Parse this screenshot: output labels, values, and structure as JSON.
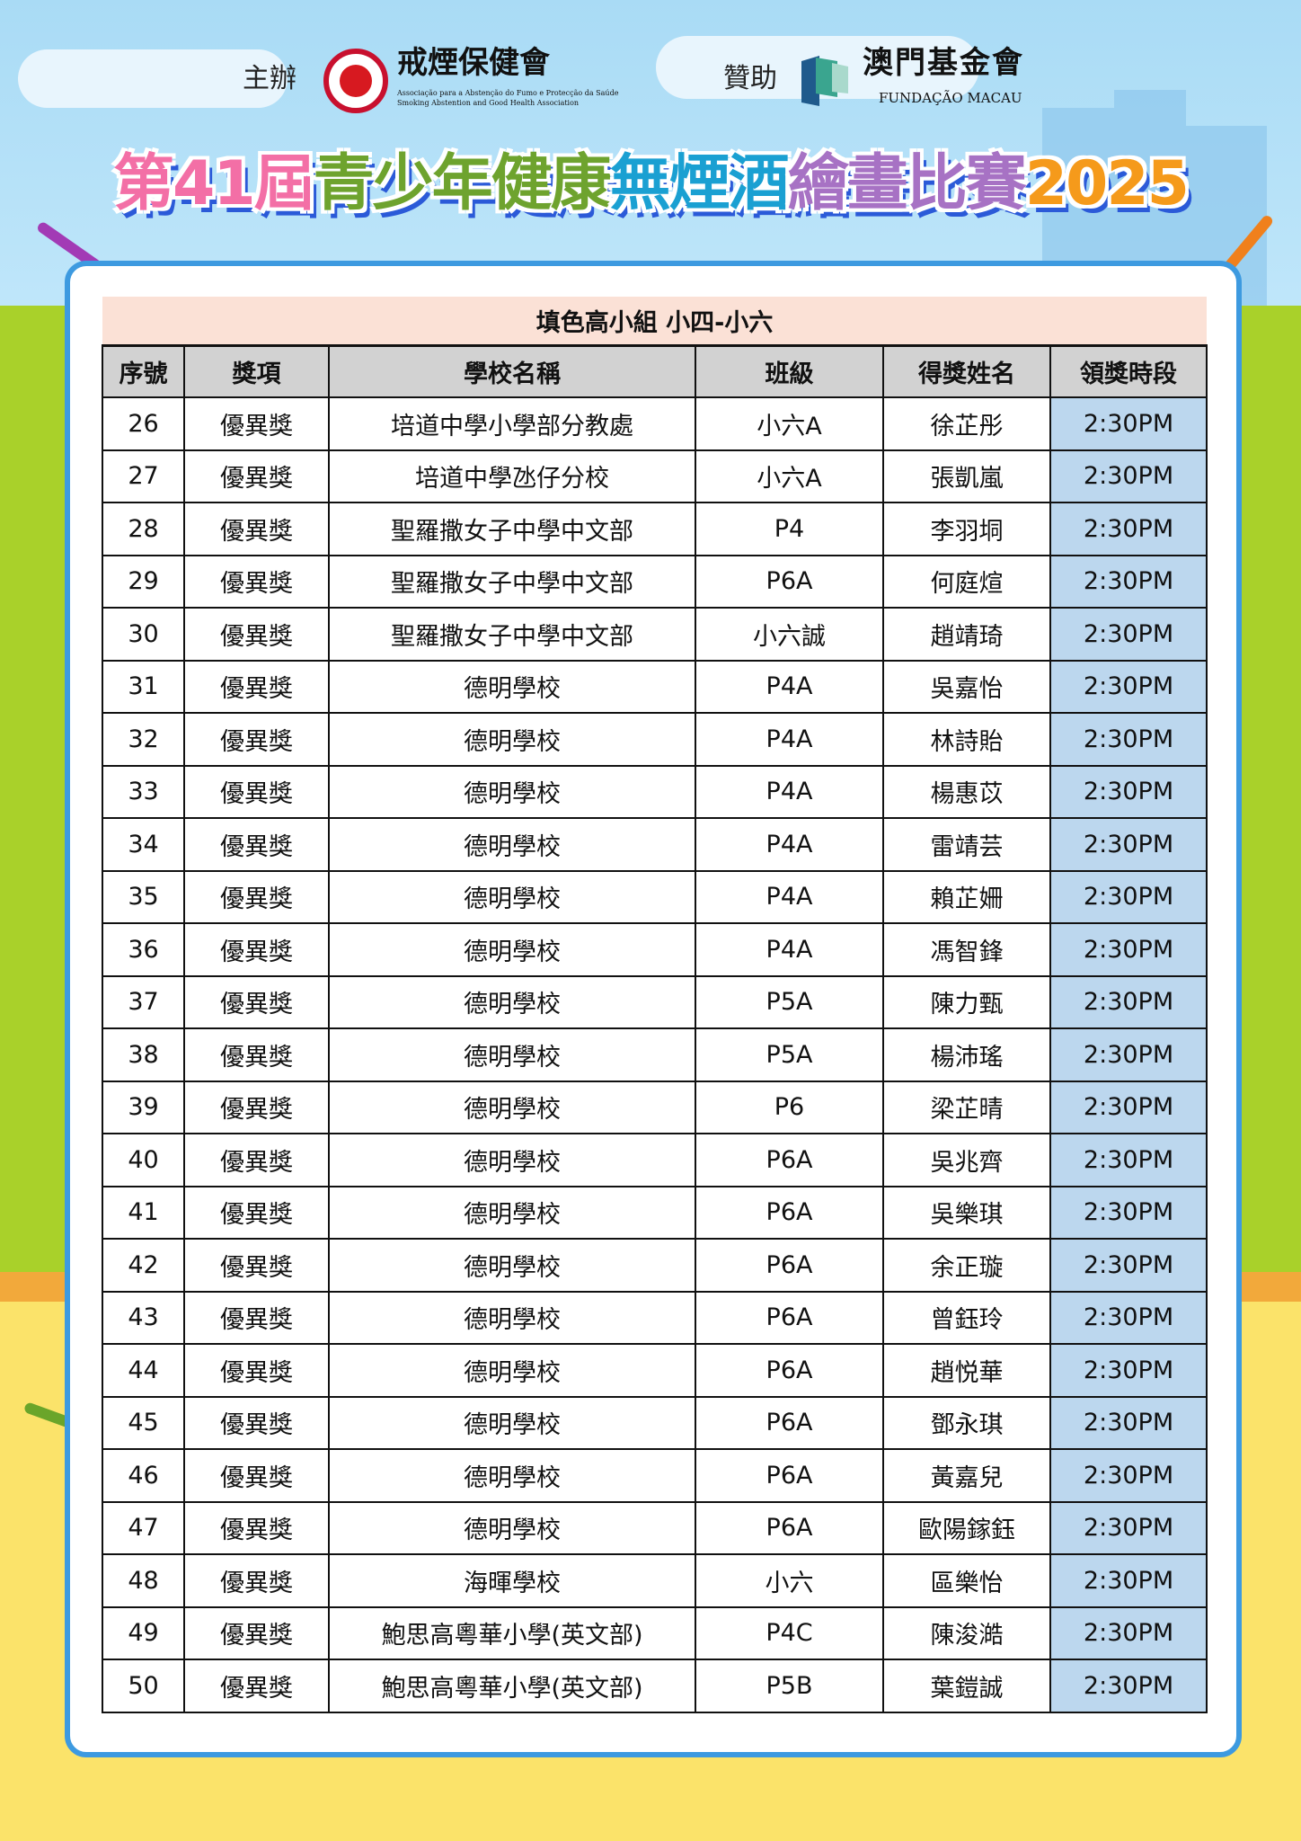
{
  "header": {
    "organizer_label": "主辦",
    "organizer_name": "戒煙保健會",
    "organizer_subtitle_pt": "Associação para a Abstenção do Fumo e Protecção da Saúde",
    "organizer_subtitle_en": "Smoking Abstention and Good Health Association",
    "sponsor_label": "贊助",
    "sponsor_name": "澳門基金會",
    "sponsor_subtitle": "FUNDAÇÃO MACAU"
  },
  "banner": {
    "parts": [
      {
        "text": "第41屆",
        "color": "#f36fa6"
      },
      {
        "text": "青少年健康",
        "color": "#6ea32e"
      },
      {
        "text": "無煙酒",
        "color": "#1aa0d2"
      },
      {
        "text": "繪畫比賽",
        "color": "#a772c4"
      },
      {
        "text": "2025",
        "color": "#f59a1b"
      }
    ]
  },
  "table": {
    "title": "填色高小組 小四-小六",
    "columns": [
      "序號",
      "獎項",
      "學校名稱",
      "班級",
      "得獎姓名",
      "領獎時段"
    ],
    "rows": [
      [
        "26",
        "優異獎",
        "培道中學小學部分教處",
        "小六A",
        "徐芷彤",
        "2:30PM"
      ],
      [
        "27",
        "優異獎",
        "培道中學氹仔分校",
        "小六A",
        "張凱嵐",
        "2:30PM"
      ],
      [
        "28",
        "優異獎",
        "聖羅撒女子中學中文部",
        "P4",
        "李羽垌",
        "2:30PM"
      ],
      [
        "29",
        "優異獎",
        "聖羅撒女子中學中文部",
        "P6A",
        "何庭煊",
        "2:30PM"
      ],
      [
        "30",
        "優異獎",
        "聖羅撒女子中學中文部",
        "小六誠",
        "趙靖琦",
        "2:30PM"
      ],
      [
        "31",
        "優異獎",
        "德明學校",
        "P4A",
        "吳嘉怡",
        "2:30PM"
      ],
      [
        "32",
        "優異獎",
        "德明學校",
        "P4A",
        "林詩貽",
        "2:30PM"
      ],
      [
        "33",
        "優異獎",
        "德明學校",
        "P4A",
        "楊惠苡",
        "2:30PM"
      ],
      [
        "34",
        "優異獎",
        "德明學校",
        "P4A",
        "雷靖芸",
        "2:30PM"
      ],
      [
        "35",
        "優異獎",
        "德明學校",
        "P4A",
        "賴芷姍",
        "2:30PM"
      ],
      [
        "36",
        "優異獎",
        "德明學校",
        "P4A",
        "馮智鋒",
        "2:30PM"
      ],
      [
        "37",
        "優異獎",
        "德明學校",
        "P5A",
        "陳力甄",
        "2:30PM"
      ],
      [
        "38",
        "優異獎",
        "德明學校",
        "P5A",
        "楊沛瑤",
        "2:30PM"
      ],
      [
        "39",
        "優異獎",
        "德明學校",
        "P6",
        "梁芷晴",
        "2:30PM"
      ],
      [
        "40",
        "優異獎",
        "德明學校",
        "P6A",
        "吳兆齊",
        "2:30PM"
      ],
      [
        "41",
        "優異獎",
        "德明學校",
        "P6A",
        "吳樂琪",
        "2:30PM"
      ],
      [
        "42",
        "優異獎",
        "德明學校",
        "P6A",
        "余正璇",
        "2:30PM"
      ],
      [
        "43",
        "優異獎",
        "德明學校",
        "P6A",
        "曾鈺玲",
        "2:30PM"
      ],
      [
        "44",
        "優異獎",
        "德明學校",
        "P6A",
        "趙悦華",
        "2:30PM"
      ],
      [
        "45",
        "優異獎",
        "德明學校",
        "P6A",
        "鄧永琪",
        "2:30PM"
      ],
      [
        "46",
        "優異獎",
        "德明學校",
        "P6A",
        "黃嘉兒",
        "2:30PM"
      ],
      [
        "47",
        "優異獎",
        "德明學校",
        "P6A",
        "歐陽鎵鈺",
        "2:30PM"
      ],
      [
        "48",
        "優異獎",
        "海暉學校",
        "小六",
        "區樂怡",
        "2:30PM"
      ],
      [
        "49",
        "優異獎",
        "鮑思高粵華小學(英文部)",
        "P4C",
        "陳浚澔",
        "2:30PM"
      ],
      [
        "50",
        "優異獎",
        "鮑思高粵華小學(英文部)",
        "P5B",
        "葉鎧誠",
        "2:30PM"
      ]
    ]
  },
  "colors": {
    "frame": "#3d9ae0",
    "time_cell": "#bcd7ee",
    "title_row": "#fbe1d6",
    "header_row": "#d2d2d2"
  }
}
